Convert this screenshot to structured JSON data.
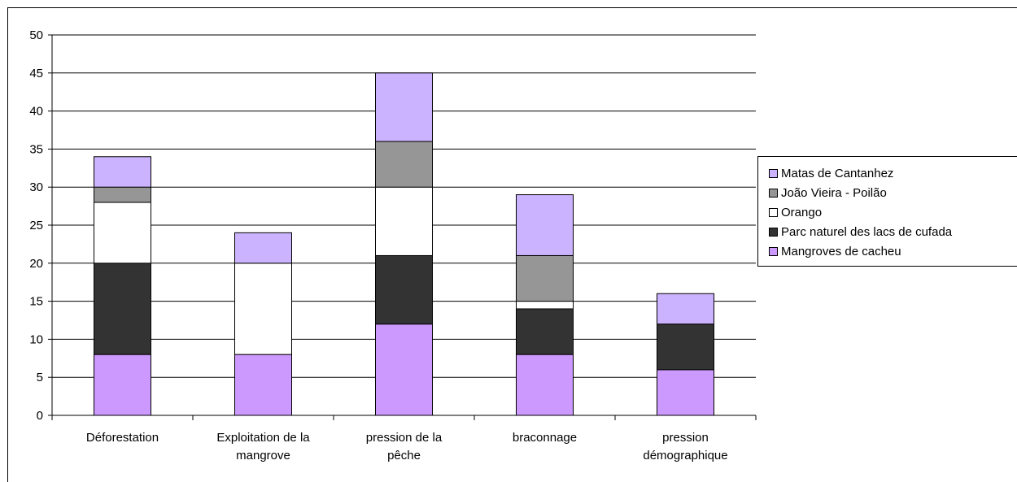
{
  "chart_data": {
    "type": "bar",
    "stacked": true,
    "categories": [
      [
        "Déforestation"
      ],
      [
        "Exploitation de la",
        "mangrove"
      ],
      [
        "pression de la",
        "pêche"
      ],
      [
        "braconnage"
      ],
      [
        "pression",
        "démographique"
      ]
    ],
    "series": [
      {
        "name": "Mangroves de cacheu",
        "color": "#cc99ff",
        "values": [
          8,
          8,
          12,
          8,
          6
        ]
      },
      {
        "name": "Parc naturel des lacs de cufada",
        "color": "#333333",
        "values": [
          12,
          0,
          9,
          6,
          6
        ]
      },
      {
        "name": "Orango",
        "color": "#ffffff",
        "values": [
          8,
          12,
          9,
          1,
          0
        ]
      },
      {
        "name": "João Vieira - Poilão",
        "color": "#969696",
        "values": [
          2,
          0,
          6,
          6,
          0
        ]
      },
      {
        "name": "Matas de Cantanhez",
        "color": "#ccb3ff",
        "values": [
          4,
          4,
          9,
          8,
          4
        ]
      }
    ],
    "y_ticks": [
      "0",
      "5",
      "10",
      "15",
      "20",
      "25",
      "30",
      "35",
      "40",
      "45",
      "50"
    ],
    "ylim": [
      0,
      50
    ],
    "grid": true,
    "legend_position": "right",
    "legend_order": [
      "Matas de Cantanhez",
      "João Vieira - Poilão",
      "Orango",
      "Parc naturel des lacs de cufada",
      "Mangroves de cacheu"
    ]
  }
}
